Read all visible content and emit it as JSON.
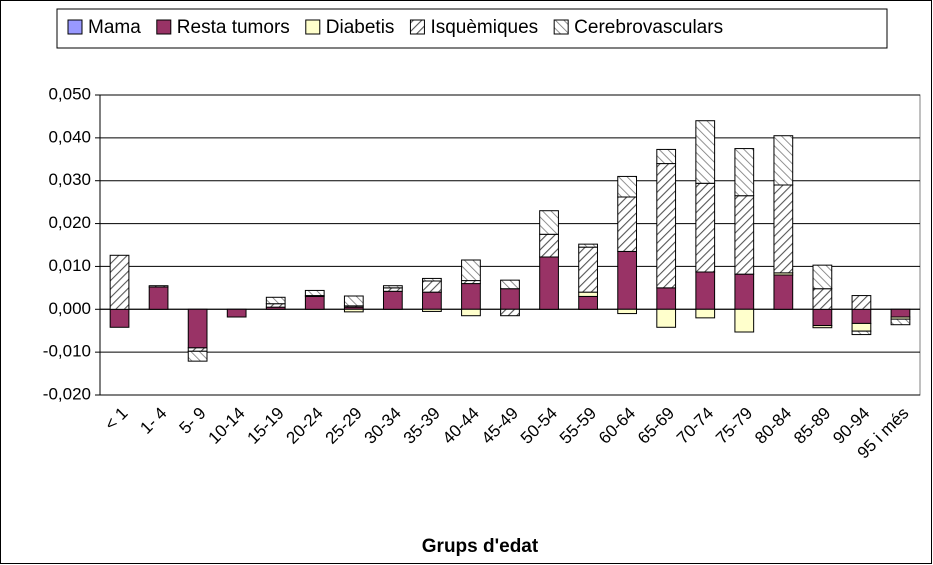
{
  "chart_data": {
    "type": "stacked_bar",
    "x_label": "Grups d'edat",
    "categories": [
      "< 1",
      "1- 4",
      "5- 9",
      "10-14",
      "15-19",
      "20-24",
      "25-29",
      "30-34",
      "35-39",
      "40-44",
      "45-49",
      "50-54",
      "55-59",
      "60-64",
      "65-69",
      "70-74",
      "75-79",
      "80-84",
      "85-89",
      "90-94",
      "95 i més"
    ],
    "series": [
      {
        "name": "Mama",
        "color": "#9999ff",
        "pattern": "solid",
        "values": [
          0,
          0,
          0,
          0,
          0,
          0,
          0,
          0,
          0,
          0,
          0,
          0,
          0,
          0,
          0,
          0,
          0,
          0,
          0,
          0,
          0
        ]
      },
      {
        "name": "Resta tumors",
        "color": "#993366",
        "pattern": "solid",
        "values": [
          -0.0042,
          0.0052,
          -0.009,
          -0.0018,
          0.0005,
          0.003,
          0.0005,
          0.0042,
          0.004,
          0.006,
          0.0048,
          0.0122,
          0.003,
          0.0135,
          0.005,
          0.0087,
          0.0082,
          0.008,
          -0.0038,
          -0.0033,
          -0.0018
        ]
      },
      {
        "name": "Diabetis",
        "color": "#ffffcc",
        "pattern": "solid",
        "values": [
          0,
          0,
          0,
          0,
          0,
          0,
          -0.0006,
          0,
          -0.0005,
          -0.0015,
          0,
          0,
          0.001,
          -0.001,
          -0.0042,
          -0.002,
          -0.0053,
          0.0005,
          -0.0005,
          -0.0018,
          -0.0005
        ]
      },
      {
        "name": "Isquèmiques",
        "color": "#555555",
        "pattern": "hatch",
        "values": [
          0.0126,
          0.0003,
          -0.0008,
          0,
          0.0008,
          0.0002,
          0.0003,
          0.0008,
          0.0026,
          0.0007,
          -0.0015,
          0.0053,
          0.0105,
          0.0127,
          0.029,
          0.0207,
          0.0183,
          0.0205,
          0.0048,
          0.0032,
          0
        ]
      },
      {
        "name": "Cerebrovasculars",
        "color": "#777777",
        "pattern": "hatch",
        "values": [
          0,
          0,
          -0.0023,
          0,
          0.0015,
          0.0012,
          0.0023,
          0.0005,
          0.0006,
          0.0048,
          0.002,
          0.0055,
          0.0007,
          0.0048,
          0.0033,
          0.0146,
          0.011,
          0.0115,
          0.0055,
          -0.0008,
          -0.0013
        ]
      }
    ],
    "ylim": [
      -0.02,
      0.05
    ],
    "yticks": [
      {
        "value": -0.02,
        "label": "-0,020"
      },
      {
        "value": -0.01,
        "label": "-0,010"
      },
      {
        "value": 0,
        "label": "0,000"
      },
      {
        "value": 0.01,
        "label": "0,010"
      },
      {
        "value": 0.02,
        "label": "0,020"
      },
      {
        "value": 0.03,
        "label": "0,030"
      },
      {
        "value": 0.04,
        "label": "0,040"
      },
      {
        "value": 0.05,
        "label": "0,050"
      }
    ],
    "grid": true,
    "legend": "top"
  }
}
